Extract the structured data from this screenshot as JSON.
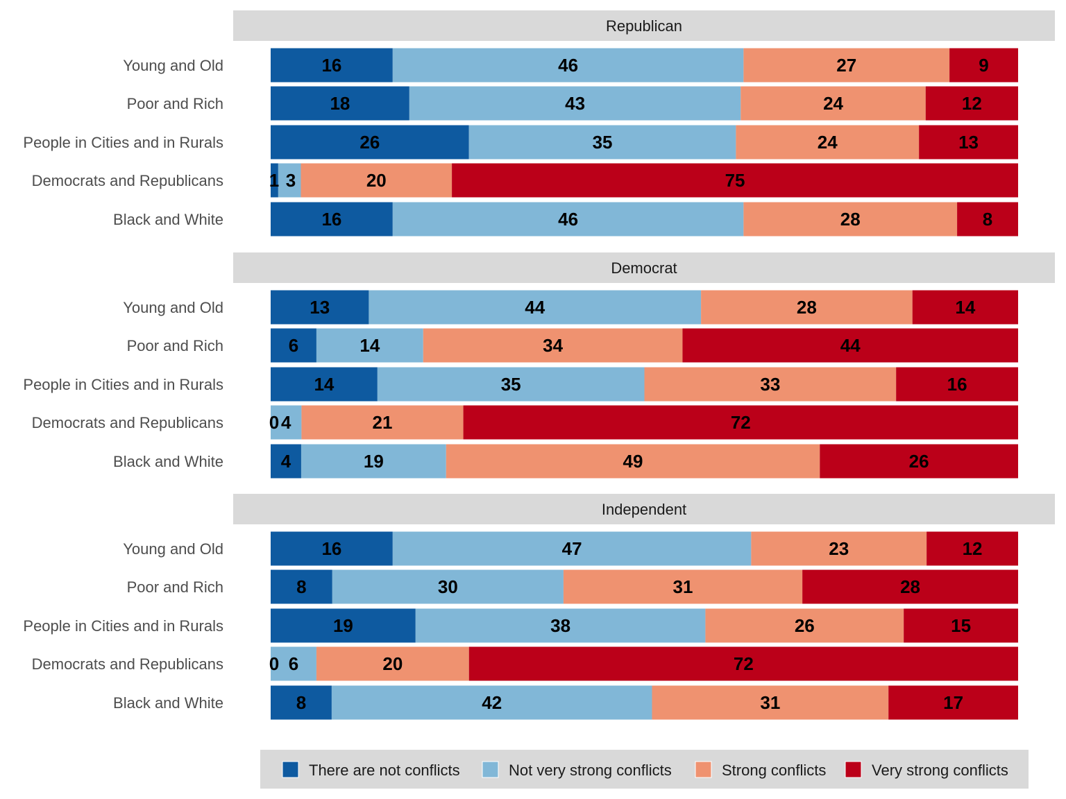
{
  "chart_data": {
    "type": "bar",
    "orientation": "horizontal",
    "stacked": "percent",
    "grid": false,
    "legend_position": "bottom",
    "categories": [
      "Young and Old",
      "Poor and Rich",
      "People in Cities and in Rurals",
      "Democrats and Republicans",
      "Black and White"
    ],
    "series_names": [
      "There are not conflicts",
      "Not very strong conflicts",
      "Strong conflicts",
      "Very strong conflicts"
    ],
    "colors": [
      "#0e5aa0",
      "#81b7d7",
      "#ef9270",
      "#bb0019"
    ],
    "panels": [
      {
        "title": "Republican",
        "values": [
          [
            16,
            46,
            27,
            9
          ],
          [
            18,
            43,
            24,
            12
          ],
          [
            26,
            35,
            24,
            13
          ],
          [
            1,
            3,
            20,
            75
          ],
          [
            16,
            46,
            28,
            8
          ]
        ]
      },
      {
        "title": "Democrat",
        "values": [
          [
            13,
            44,
            28,
            14
          ],
          [
            6,
            14,
            34,
            44
          ],
          [
            14,
            35,
            33,
            16
          ],
          [
            0,
            4,
            21,
            72
          ],
          [
            4,
            19,
            49,
            26
          ]
        ]
      },
      {
        "title": "Independent",
        "values": [
          [
            16,
            47,
            23,
            12
          ],
          [
            8,
            30,
            31,
            28
          ],
          [
            19,
            38,
            26,
            15
          ],
          [
            0,
            6,
            20,
            72
          ],
          [
            8,
            42,
            31,
            17
          ]
        ]
      }
    ]
  }
}
